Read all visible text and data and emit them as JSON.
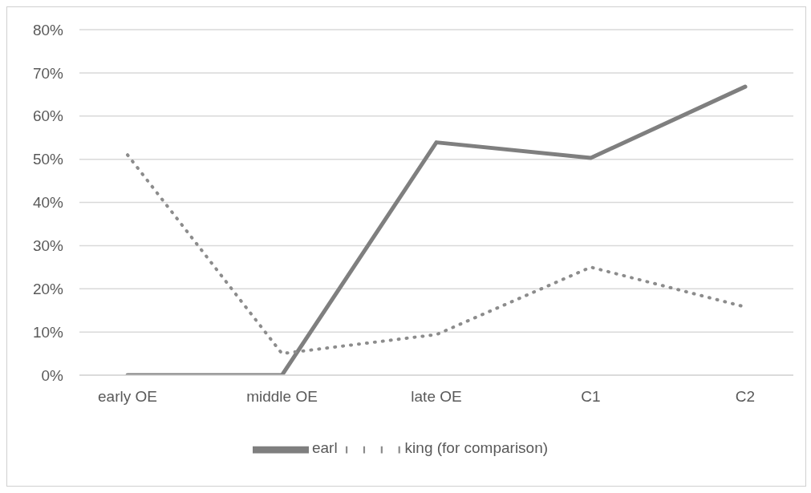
{
  "chart_data": {
    "type": "line",
    "categories": [
      "early OE",
      "middle OE",
      "late OE",
      "C1",
      "C2"
    ],
    "series": [
      {
        "name": "earl",
        "color": "#7f7f7f",
        "line_style": "solid",
        "values": [
          0,
          0,
          53.9,
          50.3,
          66.8
        ]
      },
      {
        "name": "king (for comparison)",
        "color": "#8c8c8c",
        "line_style": "dotted",
        "values": [
          51,
          5,
          9.4,
          25,
          15.8
        ]
      }
    ],
    "ylim": [
      0,
      80
    ],
    "yticks": [
      {
        "value": 0,
        "label": "0%"
      },
      {
        "value": 10,
        "label": "10%"
      },
      {
        "value": 20,
        "label": "20%"
      },
      {
        "value": 30,
        "label": "30%"
      },
      {
        "value": 40,
        "label": "40%"
      },
      {
        "value": 50,
        "label": "50%"
      },
      {
        "value": 60,
        "label": "60%"
      },
      {
        "value": 70,
        "label": "70%"
      },
      {
        "value": 80,
        "label": "80%"
      }
    ],
    "grid": "y",
    "legend": "bottom",
    "marker": "none"
  }
}
